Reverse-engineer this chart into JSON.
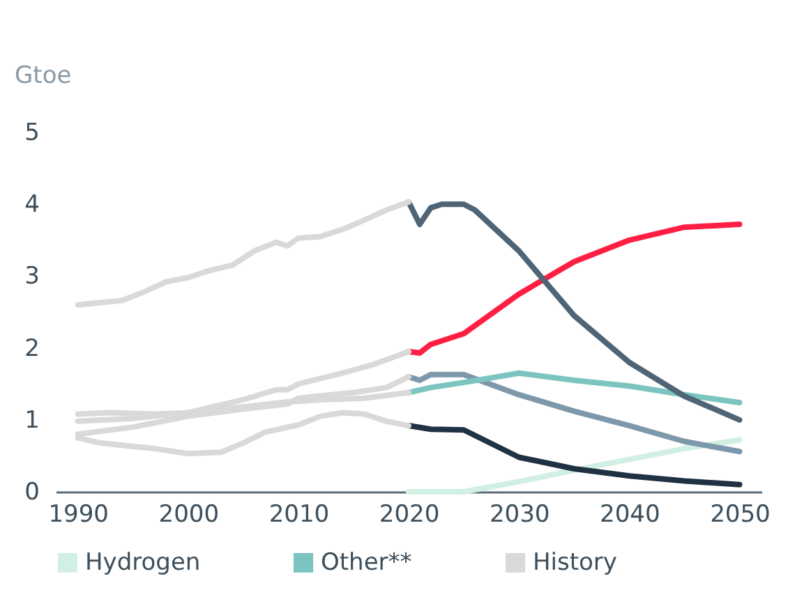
{
  "chart_data": {
    "type": "line",
    "ylabel": "Gtoe",
    "xlim": [
      1988,
      2052
    ],
    "ylim": [
      0,
      5
    ],
    "xticks": [
      1990,
      2000,
      2010,
      2020,
      2030,
      2040,
      2050
    ],
    "yticks": [
      0,
      1,
      2,
      3,
      4,
      5
    ],
    "legend": "bottom",
    "line_style": "solid",
    "series": [
      {
        "name": "Hydrogen",
        "color": "#d2efe4",
        "x": [
          2020,
          2025,
          2030,
          2035,
          2040,
          2045,
          2050
        ],
        "values": [
          0,
          0,
          0.14,
          0.3,
          0.45,
          0.6,
          0.72
        ]
      },
      {
        "color": "#1f3142",
        "x": [
          2020,
          2022,
          2025,
          2030,
          2035,
          2040,
          2045,
          2050
        ],
        "values": [
          0.92,
          0.87,
          0.86,
          0.48,
          0.32,
          0.22,
          0.15,
          0.1
        ]
      },
      {
        "color": "#7e98ab",
        "x": [
          2020,
          2021,
          2022,
          2025,
          2030,
          2035,
          2040,
          2045,
          2050
        ],
        "values": [
          1.6,
          1.55,
          1.63,
          1.63,
          1.35,
          1.12,
          0.92,
          0.7,
          0.56
        ]
      },
      {
        "name": "Other**",
        "color": "#7cc4c0",
        "x": [
          2020,
          2022,
          2025,
          2030,
          2035,
          2040,
          2045,
          2050
        ],
        "values": [
          1.38,
          1.45,
          1.52,
          1.65,
          1.55,
          1.47,
          1.35,
          1.24
        ]
      },
      {
        "color": "#ff1f43",
        "x": [
          2020,
          2021,
          2022,
          2025,
          2030,
          2035,
          2040,
          2045,
          2050
        ],
        "values": [
          1.95,
          1.93,
          2.05,
          2.2,
          2.75,
          3.2,
          3.5,
          3.68,
          3.72
        ]
      },
      {
        "color": "#4f6475",
        "x": [
          2020,
          2021,
          2022,
          2023,
          2025,
          2026,
          2030,
          2035,
          2040,
          2045,
          2050
        ],
        "values": [
          4.03,
          3.72,
          3.95,
          4.0,
          4.0,
          3.92,
          3.35,
          2.45,
          1.8,
          1.33,
          1.0
        ]
      },
      {
        "name": "History",
        "color": "#d9d9d9",
        "x": [
          1990,
          1992,
          1994,
          1996,
          1998,
          2000,
          2002,
          2004,
          2006,
          2008,
          2009,
          2010,
          2012,
          2014,
          2016,
          2018,
          2020
        ],
        "values": [
          2.6,
          2.63,
          2.66,
          2.78,
          2.92,
          2.98,
          3.08,
          3.15,
          3.35,
          3.47,
          3.42,
          3.53,
          3.55,
          3.65,
          3.78,
          3.92,
          4.03
        ]
      },
      {
        "color": "#d9d9d9",
        "x": [
          1990,
          1995,
          2000,
          2005,
          2008,
          2009,
          2010,
          2014,
          2017,
          2020
        ],
        "values": [
          0.98,
          1.02,
          1.1,
          1.28,
          1.42,
          1.42,
          1.5,
          1.65,
          1.78,
          1.95
        ]
      },
      {
        "color": "#d9d9d9",
        "x": [
          1990,
          1995,
          2000,
          2005,
          2009,
          2010,
          2015,
          2018,
          2020
        ],
        "values": [
          0.8,
          0.9,
          1.05,
          1.15,
          1.22,
          1.3,
          1.38,
          1.45,
          1.6
        ]
      },
      {
        "color": "#d9d9d9",
        "x": [
          1990,
          1993,
          1997,
          2000,
          2005,
          2009,
          2012,
          2016,
          2020
        ],
        "values": [
          1.08,
          1.1,
          1.08,
          1.1,
          1.18,
          1.25,
          1.28,
          1.3,
          1.38
        ]
      },
      {
        "color": "#d9d9d9",
        "x": [
          1990,
          1992,
          1995,
          1997,
          2000,
          2003,
          2005,
          2007,
          2010,
          2012,
          2014,
          2016,
          2018,
          2020
        ],
        "values": [
          0.75,
          0.68,
          0.63,
          0.6,
          0.53,
          0.55,
          0.68,
          0.83,
          0.93,
          1.05,
          1.1,
          1.08,
          0.98,
          0.92
        ]
      }
    ]
  }
}
